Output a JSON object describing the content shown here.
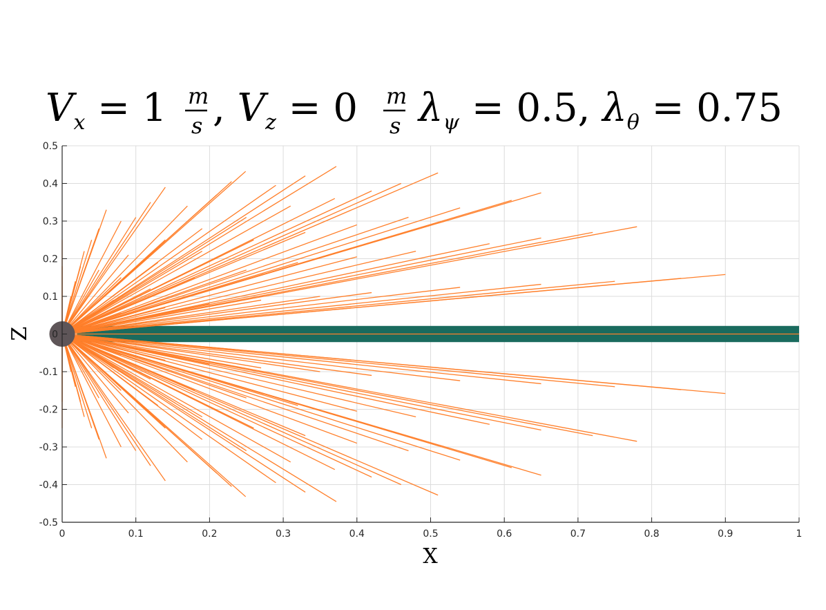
{
  "chart_data": {
    "type": "line",
    "title": {
      "vx_sym": "V",
      "vx_sub": "x",
      "vx_val": " = 1",
      "unit_num": "m",
      "unit_den": "s",
      "comma1": ", ",
      "vz_sym": "V",
      "vz_sub": "z",
      "vz_val": " = 0",
      "lpsi_sym": "λ",
      "lpsi_sub": "ψ",
      "lpsi_val": " = 0.5, ",
      "lth_sym": "λ",
      "lth_sub": "θ",
      "lth_val": " = 0.75"
    },
    "xlabel": "X",
    "ylabel": "Z",
    "xlim": [
      0,
      1
    ],
    "ylim": [
      -0.5,
      0.5
    ],
    "xticks": [
      "0",
      "0.1",
      "0.2",
      "0.3",
      "0.4",
      "0.5",
      "0.6",
      "0.7",
      "0.8",
      "0.9",
      "1"
    ],
    "yticks": [
      "0.5",
      "0.4",
      "0.3",
      "0.2",
      "0.1",
      "0",
      "-0.1",
      "-0.2",
      "-0.3",
      "-0.4",
      "-0.5"
    ],
    "grid": true,
    "colors": {
      "rays": "#ff7f2a",
      "band": "#1a6b5e",
      "circle": "#5e5558",
      "grid": "#dcdcdc"
    },
    "circle": {
      "cx": 0,
      "cz": 0,
      "r": 0.034
    },
    "band": {
      "z_min": -0.0215,
      "z_max": 0.0215,
      "x_min": 0.02,
      "x_max": 1.0
    },
    "rays": [
      [
        1.0,
        0.0
      ],
      [
        0.9,
        0.158
      ],
      [
        0.84,
        0.148
      ],
      [
        0.75,
        0.14
      ],
      [
        0.65,
        0.132
      ],
      [
        0.54,
        0.124
      ],
      [
        0.42,
        0.11
      ],
      [
        0.35,
        0.1
      ],
      [
        0.27,
        0.09
      ],
      [
        0.2,
        0.08
      ],
      [
        0.14,
        0.07
      ],
      [
        0.08,
        0.055
      ],
      [
        0.78,
        0.285
      ],
      [
        0.72,
        0.27
      ],
      [
        0.65,
        0.255
      ],
      [
        0.58,
        0.24
      ],
      [
        0.48,
        0.22
      ],
      [
        0.4,
        0.205
      ],
      [
        0.32,
        0.19
      ],
      [
        0.25,
        0.17
      ],
      [
        0.18,
        0.15
      ],
      [
        0.12,
        0.12
      ],
      [
        0.07,
        0.09
      ],
      [
        0.65,
        0.375
      ],
      [
        0.61,
        0.355
      ],
      [
        0.54,
        0.335
      ],
      [
        0.47,
        0.31
      ],
      [
        0.4,
        0.29
      ],
      [
        0.33,
        0.27
      ],
      [
        0.26,
        0.25
      ],
      [
        0.19,
        0.22
      ],
      [
        0.13,
        0.19
      ],
      [
        0.08,
        0.15
      ],
      [
        0.51,
        0.428
      ],
      [
        0.46,
        0.4
      ],
      [
        0.42,
        0.38
      ],
      [
        0.37,
        0.36
      ],
      [
        0.31,
        0.34
      ],
      [
        0.25,
        0.31
      ],
      [
        0.19,
        0.28
      ],
      [
        0.14,
        0.25
      ],
      [
        0.09,
        0.21
      ],
      [
        0.05,
        0.17
      ],
      [
        0.372,
        0.445
      ],
      [
        0.33,
        0.42
      ],
      [
        0.29,
        0.395
      ],
      [
        0.249,
        0.432
      ],
      [
        0.23,
        0.405
      ],
      [
        0.21,
        0.37
      ],
      [
        0.17,
        0.34
      ],
      [
        0.14,
        0.39
      ],
      [
        0.12,
        0.35
      ],
      [
        0.1,
        0.31
      ],
      [
        0.08,
        0.3
      ],
      [
        0.06,
        0.33
      ],
      [
        0.05,
        0.28
      ],
      [
        0.04,
        0.25
      ],
      [
        0.03,
        0.22
      ],
      [
        0.025,
        0.18
      ],
      [
        0.018,
        0.14
      ],
      [
        0.012,
        0.1
      ],
      [
        0.0,
        0.25
      ],
      [
        0.0,
        0.18
      ],
      [
        0.9,
        -0.158
      ],
      [
        0.84,
        -0.148
      ],
      [
        0.75,
        -0.14
      ],
      [
        0.65,
        -0.132
      ],
      [
        0.54,
        -0.124
      ],
      [
        0.42,
        -0.11
      ],
      [
        0.35,
        -0.1
      ],
      [
        0.27,
        -0.09
      ],
      [
        0.2,
        -0.08
      ],
      [
        0.14,
        -0.07
      ],
      [
        0.08,
        -0.055
      ],
      [
        0.78,
        -0.285
      ],
      [
        0.72,
        -0.27
      ],
      [
        0.65,
        -0.255
      ],
      [
        0.58,
        -0.24
      ],
      [
        0.48,
        -0.22
      ],
      [
        0.4,
        -0.205
      ],
      [
        0.32,
        -0.19
      ],
      [
        0.25,
        -0.17
      ],
      [
        0.18,
        -0.15
      ],
      [
        0.12,
        -0.12
      ],
      [
        0.07,
        -0.09
      ],
      [
        0.65,
        -0.375
      ],
      [
        0.61,
        -0.355
      ],
      [
        0.54,
        -0.335
      ],
      [
        0.47,
        -0.31
      ],
      [
        0.4,
        -0.29
      ],
      [
        0.33,
        -0.27
      ],
      [
        0.26,
        -0.25
      ],
      [
        0.19,
        -0.22
      ],
      [
        0.13,
        -0.19
      ],
      [
        0.08,
        -0.15
      ],
      [
        0.51,
        -0.428
      ],
      [
        0.46,
        -0.4
      ],
      [
        0.42,
        -0.38
      ],
      [
        0.37,
        -0.36
      ],
      [
        0.31,
        -0.34
      ],
      [
        0.25,
        -0.31
      ],
      [
        0.19,
        -0.28
      ],
      [
        0.14,
        -0.25
      ],
      [
        0.09,
        -0.21
      ],
      [
        0.05,
        -0.17
      ],
      [
        0.372,
        -0.445
      ],
      [
        0.33,
        -0.42
      ],
      [
        0.29,
        -0.395
      ],
      [
        0.249,
        -0.432
      ],
      [
        0.23,
        -0.405
      ],
      [
        0.21,
        -0.37
      ],
      [
        0.17,
        -0.34
      ],
      [
        0.14,
        -0.39
      ],
      [
        0.12,
        -0.35
      ],
      [
        0.1,
        -0.31
      ],
      [
        0.08,
        -0.3
      ],
      [
        0.06,
        -0.33
      ],
      [
        0.05,
        -0.28
      ],
      [
        0.04,
        -0.25
      ],
      [
        0.03,
        -0.22
      ],
      [
        0.025,
        -0.18
      ],
      [
        0.018,
        -0.14
      ],
      [
        0.012,
        -0.1
      ],
      [
        0.0,
        -0.25
      ],
      [
        0.0,
        -0.18
      ]
    ]
  }
}
